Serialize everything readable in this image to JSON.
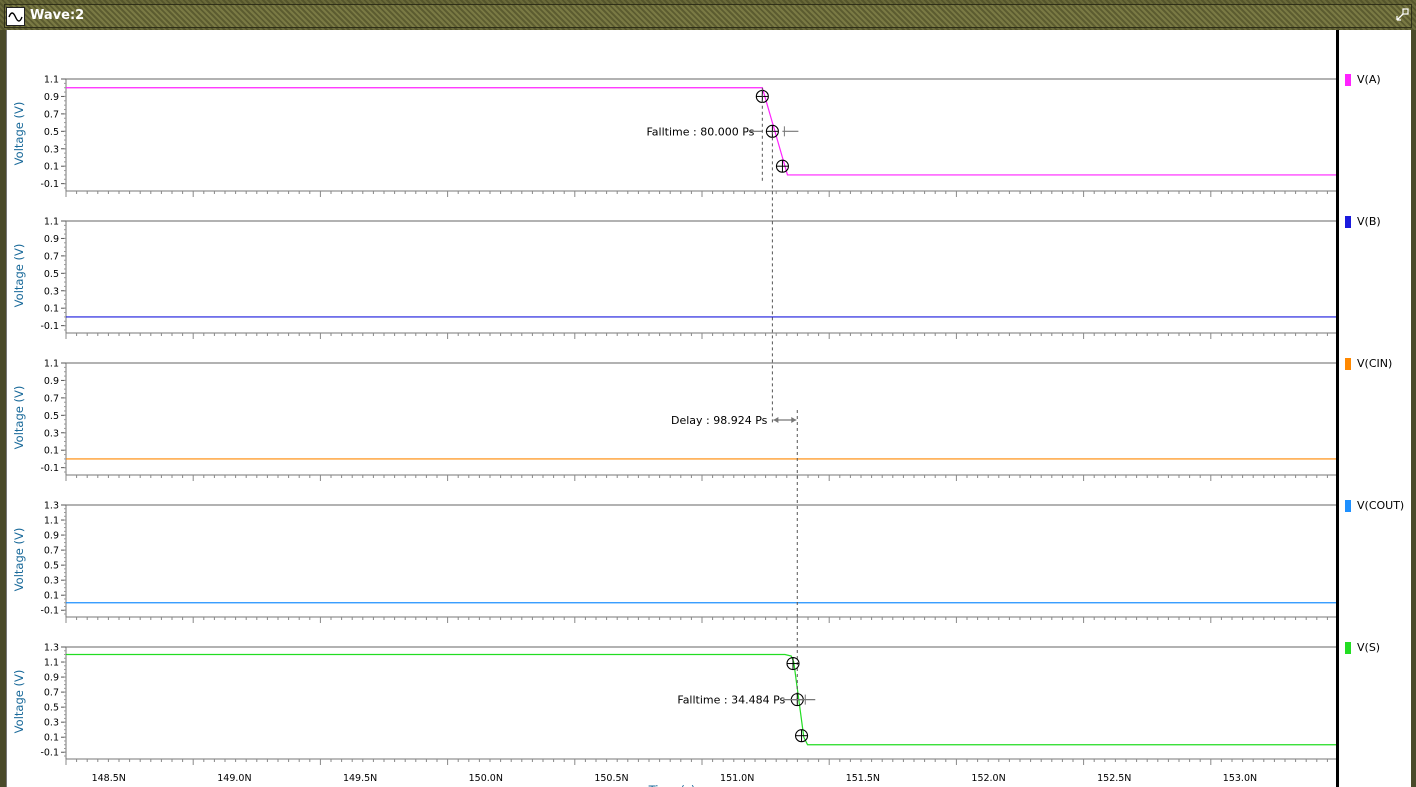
{
  "window": {
    "title": "Wave:2",
    "icon": "sine-wave-icon",
    "restore_icon": "restore-window-icon"
  },
  "x_axis": {
    "label": "Time (s)",
    "ticks": [
      "148.5N",
      "149.0N",
      "149.5N",
      "150.0N",
      "150.5N",
      "151.0N",
      "151.5N",
      "152.0N",
      "152.5N",
      "153.0N"
    ],
    "range_ns": [
      148.33,
      153.39
    ]
  },
  "panels": [
    {
      "name": "a",
      "ylabel": "Voltage (V)",
      "yticks": [
        "1.1",
        "0.9",
        "0.7",
        "0.5",
        "0.3",
        "0.1",
        "-0.1"
      ],
      "ymin": -0.15,
      "ymax": 1.1,
      "legend": "V(A)",
      "color": "#ff22ff"
    },
    {
      "name": "b",
      "ylabel": "Voltage (V)",
      "yticks": [
        "1.1",
        "0.9",
        "0.7",
        "0.5",
        "0.3",
        "0.1",
        "-0.1"
      ],
      "ymin": -0.15,
      "ymax": 1.1,
      "legend": "V(B)",
      "color": "#1a1add"
    },
    {
      "name": "cin",
      "ylabel": "Voltage (V)",
      "yticks": [
        "1.1",
        "0.9",
        "0.7",
        "0.5",
        "0.3",
        "0.1",
        "-0.1"
      ],
      "ymin": -0.15,
      "ymax": 1.1,
      "legend": "V(CIN)",
      "color": "#ff8800"
    },
    {
      "name": "cout",
      "ylabel": "Voltage (V)",
      "yticks": [
        "1.3",
        "1.1",
        "0.9",
        "0.7",
        "0.5",
        "0.3",
        "0.1",
        "-0.1"
      ],
      "ymin": -0.15,
      "ymax": 1.3,
      "legend": "V(COUT)",
      "color": "#1e90ff"
    },
    {
      "name": "s",
      "ylabel": "Voltage (V)",
      "yticks": [
        "1.3",
        "1.1",
        "0.9",
        "0.7",
        "0.5",
        "0.3",
        "0.1",
        "-0.1"
      ],
      "ymin": -0.15,
      "ymax": 1.3,
      "legend": "V(S)",
      "color": "#22dd22"
    }
  ],
  "chart_data": {
    "type": "line",
    "xlabel": "Time (s)",
    "xlim_ns": [
      148.33,
      153.39
    ],
    "series": [
      {
        "name": "V(A)",
        "color": "#ff22ff",
        "x": [
          148.33,
          151.1,
          151.2,
          153.39
        ],
        "y": [
          1.0,
          1.0,
          0.0,
          0.0
        ]
      },
      {
        "name": "V(B)",
        "color": "#1a1add",
        "x": [
          148.33,
          153.39
        ],
        "y": [
          0.0,
          0.0
        ]
      },
      {
        "name": "V(CIN)",
        "color": "#ff8800",
        "x": [
          148.33,
          153.39
        ],
        "y": [
          0.0,
          0.0
        ]
      },
      {
        "name": "V(COUT)",
        "color": "#1e90ff",
        "x": [
          148.33,
          153.39
        ],
        "y": [
          0.0,
          0.0
        ]
      },
      {
        "name": "V(S)",
        "color": "#22dd22",
        "x": [
          148.33,
          151.19,
          151.215,
          151.225,
          151.245,
          151.265,
          151.28,
          153.39
        ],
        "y": [
          1.2,
          1.2,
          1.18,
          1.1,
          0.6,
          0.1,
          0.0,
          0.0
        ]
      }
    ],
    "measurements": [
      {
        "label": "Falltime : 80.000 Ps",
        "value_ps": 80.0,
        "signal": "V(A)",
        "points": [
          {
            "x": 151.1,
            "y": 0.9
          },
          {
            "x": 151.14,
            "y": 0.5
          },
          {
            "x": 151.18,
            "y": 0.1
          }
        ]
      },
      {
        "label": "Delay : 98.924 Ps",
        "value_ps": 98.924,
        "from": {
          "signal": "V(A)",
          "x": 151.14
        },
        "to": {
          "signal": "V(S)",
          "x": 151.239
        }
      },
      {
        "label": "Falltime : 34.484 Ps",
        "value_ps": 34.484,
        "signal": "V(S)",
        "points": [
          {
            "x": 151.222,
            "y": 1.08
          },
          {
            "x": 151.239,
            "y": 0.6
          },
          {
            "x": 151.256,
            "y": 0.12
          }
        ]
      }
    ]
  }
}
